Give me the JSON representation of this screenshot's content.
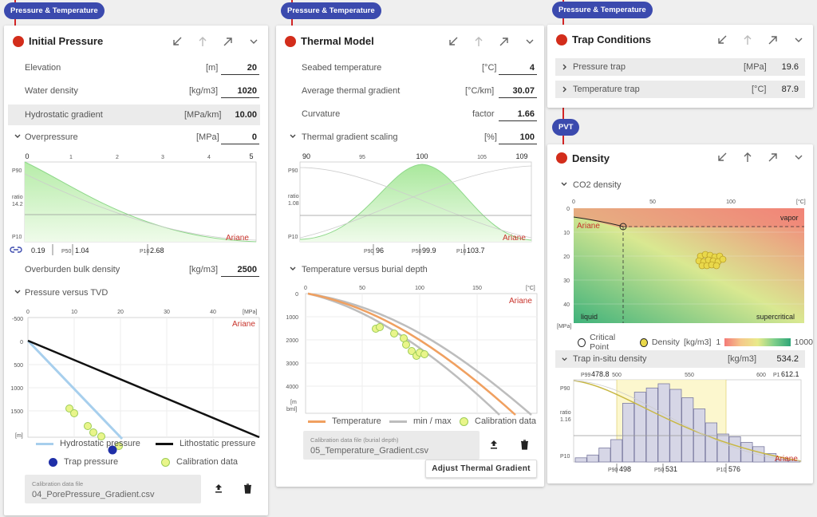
{
  "tags": {
    "initial_pressure": "Pressure & Temperature",
    "thermal_model": "Pressure & Temperature",
    "trap_conditions": "Pressure & Temperature",
    "pvt": "PVT"
  },
  "watermark": "Ariane",
  "initial_pressure": {
    "title": "Initial Pressure",
    "fields": [
      {
        "label": "Elevation",
        "unit": "[m]",
        "value": "20"
      },
      {
        "label": "Water density",
        "unit": "[kg/m3]",
        "value": "1020"
      },
      {
        "label": "Hydrostatic gradient",
        "unit": "[MPa/km]",
        "value": "10.00"
      }
    ],
    "overpressure": {
      "label": "Overpressure",
      "unit": "[MPa]",
      "value": "0"
    },
    "overburden": {
      "label": "Overburden bulk density",
      "unit": "[kg/m3]",
      "value": "2500"
    },
    "pressure_section": "Pressure versus TVD",
    "dist_labels": {
      "ticks": [
        "0",
        "1",
        "2",
        "3",
        "4",
        "5"
      ],
      "y_top": "P90",
      "y_mid": "ratio",
      "y_mid_val": "14.2",
      "y_bot": "P10",
      "low": "0.19",
      "p50_tag": "P50",
      "p50": "1.04",
      "p10_tag": "P10",
      "p10": "2.68"
    },
    "tvd_chart": {
      "x_ticks": [
        "0",
        "10",
        "20",
        "30",
        "40"
      ],
      "x_unit": "[MPa]",
      "y_ticks": [
        "-500",
        "0",
        "500",
        "1000",
        "1500"
      ],
      "y_unit": "[m]"
    },
    "legend": {
      "hydro": "Hydrostatic pressure",
      "litho": "Lithostatic pressure",
      "trap": "Trap pressure",
      "calib": "Calibration data"
    },
    "file": {
      "label": "Calibration data file",
      "value": "04_PorePressure_Gradient.csv"
    }
  },
  "thermal_model": {
    "title": "Thermal Model",
    "fields": [
      {
        "label": "Seabed temperature",
        "unit": "[°C]",
        "value": "4"
      },
      {
        "label": "Average thermal gradient",
        "unit": "[°C/km]",
        "value": "30.07"
      },
      {
        "label": "Curvature",
        "unit": "factor",
        "value": "1.66"
      }
    ],
    "scaling": {
      "label": "Thermal gradient scaling",
      "unit": "[%]",
      "value": "100"
    },
    "temp_section": "Temperature versus burial depth",
    "dist_labels": {
      "ticks": [
        "90",
        "95",
        "100",
        "105",
        "109"
      ],
      "y_top": "P90",
      "y_mid": "ratio",
      "y_mid_val": "1.08",
      "y_bot": "P10",
      "p90_tag": "P90",
      "p90": "96",
      "p50_tag": "P50",
      "p50": "99.9",
      "p10_tag": "P10",
      "p10": "103.7"
    },
    "temp_chart": {
      "x_ticks": [
        "0",
        "50",
        "100",
        "150"
      ],
      "x_unit": "[°C]",
      "y_ticks": [
        "0",
        "1000",
        "2000",
        "3000",
        "4000"
      ],
      "y_unit_top": "[m",
      "y_unit_bot": "bml]"
    },
    "legend": {
      "temp": "Temperature",
      "minmax": "min / max",
      "calib": "Calibration data"
    },
    "file": {
      "label": "Calibration data file (burial depth)",
      "value": "05_Temperature_Gradient.csv"
    },
    "adjust_button": "Adjust Thermal Gradient"
  },
  "trap_conditions": {
    "title": "Trap Conditions",
    "rows": [
      {
        "label": "Pressure trap",
        "unit": "[MPa]",
        "value": "19.6"
      },
      {
        "label": "Temperature trap",
        "unit": "[°C]",
        "value": "87.9"
      }
    ]
  },
  "density": {
    "title": "Density",
    "co2_section": "CO2 density",
    "phase_chart": {
      "x_ticks": [
        "0",
        "50",
        "100"
      ],
      "x_unit": "[°C]",
      "y_ticks": [
        "0",
        "10",
        "20",
        "30",
        "40"
      ],
      "y_unit": "[MPa]",
      "vapor": "vapor",
      "liquid": "liquid",
      "supercritical": "supercritical"
    },
    "legend": {
      "critical": "Critical Point",
      "density": "Density",
      "unit": "[kg/m3]",
      "min": "1",
      "max": "1000"
    },
    "trap_density": {
      "label": "Trap in-situ density",
      "unit": "[kg/m3]",
      "value": "534.2"
    },
    "dist_labels": {
      "p99_tag": "P99",
      "p99": "478.8",
      "t500": "500",
      "t550": "550",
      "t600": "600",
      "p1_tag": "P1",
      "p1": "612.1",
      "y_top": "P90",
      "y_mid": "ratio",
      "y_mid_val": "1.16",
      "y_bot": "P10",
      "p90_tag": "P90",
      "p90": "498",
      "p50_tag": "P50",
      "p50": "531",
      "p10_tag": "P10",
      "p10": "576"
    },
    "histogram": [
      3,
      5,
      10,
      16,
      42,
      50,
      53,
      56,
      52,
      46,
      38,
      28,
      20,
      18,
      14,
      11,
      6,
      2,
      1
    ]
  },
  "colors": {
    "accent": "#3b4aae",
    "status": "#d32d1b",
    "lithostatic": "#111111",
    "hydrostatic": "#9cc9ea",
    "temperature": "#f0a060",
    "minmax": "#bdbdbd",
    "calib": "#e9f58a"
  }
}
